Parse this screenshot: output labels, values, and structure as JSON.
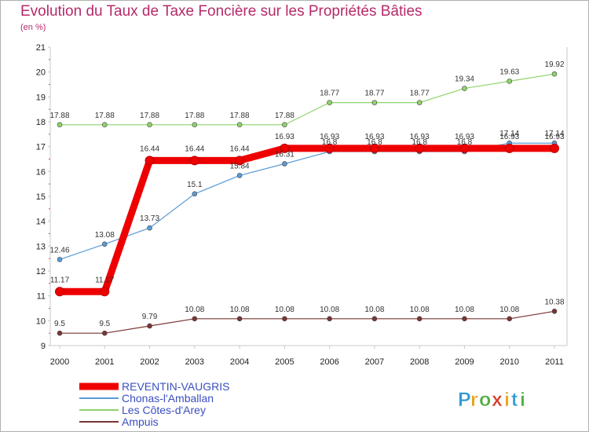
{
  "header": {
    "title": "Evolution du Taux de Taxe Foncière sur les Propriétés Bâties",
    "subtitle": "(en %)"
  },
  "logo": {
    "text": "Proxiti",
    "letters": [
      "P",
      "r",
      "o",
      "x",
      "i",
      "t",
      "i"
    ],
    "colors": [
      "#2f9bd3",
      "#e8a21c",
      "#4fae3c",
      "#d93a2b",
      "#e8a21c",
      "#2f9bd3",
      "#4fae3c"
    ]
  },
  "chart_data": {
    "type": "line",
    "title": "Evolution du Taux de Taxe Foncière sur les Propriétés Bâties",
    "ylabel": "(en %)",
    "xlabel": "",
    "x": [
      "2000",
      "2001",
      "2002",
      "2003",
      "2004",
      "2005",
      "2006",
      "2007",
      "2008",
      "2009",
      "2010",
      "2011"
    ],
    "ylim": [
      9,
      21
    ],
    "yticks": [
      9,
      10,
      11,
      12,
      13,
      14,
      15,
      16,
      17,
      18,
      19,
      20,
      21
    ],
    "grid": false,
    "legend_position": "bottom-left",
    "series": [
      {
        "name": "REVENTIN-VAUGRIS",
        "color": "#ee0000",
        "values": [
          11.17,
          11.17,
          16.44,
          16.44,
          16.44,
          16.93,
          16.93,
          16.93,
          16.93,
          16.93,
          16.93,
          16.93
        ],
        "labels": [
          "11.17",
          "11.17",
          "16.44",
          "16.44",
          "16.44",
          "16.93",
          "16.93",
          "16.93",
          "16.93",
          "16.93",
          "16.93",
          "16.93"
        ]
      },
      {
        "name": "Chonas-l'Amballan",
        "color": "#5a9bd5",
        "values": [
          12.46,
          13.08,
          13.73,
          15.1,
          15.84,
          16.31,
          16.8,
          16.8,
          16.8,
          16.8,
          17.14,
          17.14
        ],
        "labels": [
          "12.46",
          "13.08",
          "13.73",
          "15.1",
          "15.84",
          "16.31",
          "16.8",
          "16.8",
          "16.8",
          "16.8",
          "17.14",
          "17.14"
        ]
      },
      {
        "name": "Les Côtes-d'Arey",
        "color": "#8fd36b",
        "values": [
          17.88,
          17.88,
          17.88,
          17.88,
          17.88,
          17.88,
          18.77,
          18.77,
          18.77,
          19.34,
          19.63,
          19.92
        ],
        "labels": [
          "17.88",
          "17.88",
          "17.88",
          "17.88",
          "17.88",
          "17.88",
          "18.77",
          "18.77",
          "18.77",
          "19.34",
          "19.63",
          "19.92"
        ]
      },
      {
        "name": "Ampuis",
        "color": "#7a3535",
        "values": [
          9.5,
          9.5,
          9.79,
          10.08,
          10.08,
          10.08,
          10.08,
          10.08,
          10.08,
          10.08,
          10.08,
          10.38
        ],
        "labels": [
          "9.5",
          "9.5",
          "9.79",
          "10.08",
          "10.08",
          "10.08",
          "10.08",
          "10.08",
          "10.08",
          "10.08",
          "10.08",
          "10.38"
        ]
      }
    ]
  }
}
